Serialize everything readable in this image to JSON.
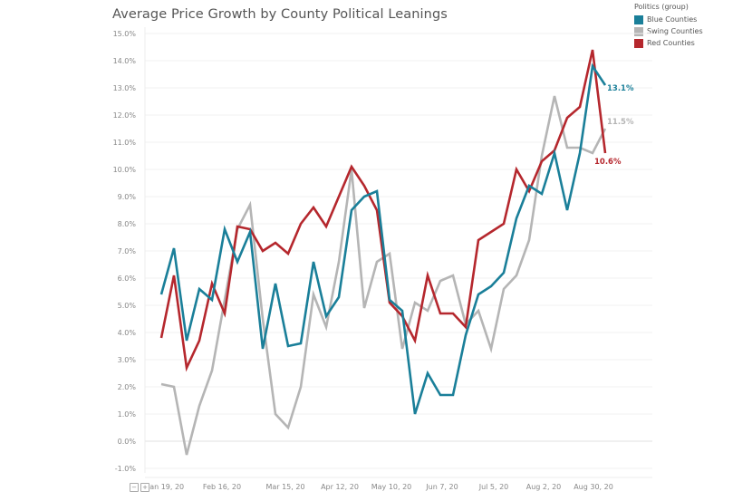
{
  "chart_data": {
    "type": "line",
    "title": "Average Price Growth by County Political Leanings",
    "xlabel": "",
    "ylabel": "",
    "ylim": [
      -1.0,
      15.0
    ],
    "y_ticks": [
      -1.0,
      0.0,
      1.0,
      2.0,
      3.0,
      4.0,
      5.0,
      6.0,
      7.0,
      8.0,
      9.0,
      10.0,
      11.0,
      12.0,
      13.0,
      14.0,
      15.0
    ],
    "y_tick_labels": [
      "-1.0%",
      "0.0%",
      "1.0%",
      "2.0%",
      "3.0%",
      "4.0%",
      "5.0%",
      "6.0%",
      "7.0%",
      "8.0%",
      "9.0%",
      "10.0%",
      "11.0%",
      "12.0%",
      "13.0%",
      "14.0%",
      "15.0%"
    ],
    "x_unit": "week index (weekly points)",
    "x_ticks": [
      {
        "week": 0.4,
        "label": "Jan 19, 20"
      },
      {
        "week": 4.8,
        "label": "Feb 16, 20"
      },
      {
        "week": 9.6,
        "label": "Mar 15, 20"
      },
      {
        "week": 14.0,
        "label": "Apr 12, 20"
      },
      {
        "week": 18.0,
        "label": "May 10, 20"
      },
      {
        "week": 22.0,
        "label": "Jun 7, 20"
      },
      {
        "week": 26.2,
        "label": "Jul 5, 20"
      },
      {
        "week": 30.0,
        "label": "Aug 2, 20"
      },
      {
        "week": 34.0,
        "label": "Aug 30, 20"
      }
    ],
    "grid": true,
    "legend": {
      "title": "Politics (group)",
      "placement": "top-right",
      "entries": [
        "Blue Counties",
        "Swing Counties",
        "Red Counties"
      ]
    },
    "series": [
      {
        "name": "Blue Counties",
        "color": "#1a7f99",
        "end_label": "13.1%",
        "values": [
          5.4,
          7.1,
          3.7,
          5.6,
          5.2,
          7.8,
          6.6,
          7.7,
          3.4,
          5.8,
          3.5,
          3.6,
          6.6,
          4.6,
          5.3,
          8.5,
          9.0,
          9.2,
          5.2,
          4.8,
          1.0,
          2.5,
          1.7,
          1.7,
          3.9,
          5.4,
          5.7,
          6.2,
          8.2,
          9.4,
          9.1,
          10.6,
          8.5,
          10.6,
          13.8,
          13.1
        ]
      },
      {
        "name": "Swing Counties",
        "color": "#b5b5b5",
        "end_label": "11.5%",
        "values": [
          2.1,
          2.0,
          -0.5,
          1.3,
          2.6,
          5.2,
          7.8,
          8.7,
          4.5,
          1.0,
          0.5,
          2.0,
          5.4,
          4.2,
          6.6,
          10.0,
          4.9,
          6.6,
          6.9,
          3.4,
          5.1,
          4.8,
          5.9,
          6.1,
          4.3,
          4.8,
          3.4,
          5.6,
          6.1,
          7.4,
          10.5,
          12.7,
          10.8,
          10.8,
          10.6,
          11.5
        ]
      },
      {
        "name": "Red Counties",
        "color": "#b5272d",
        "end_label": "10.6%",
        "values": [
          3.8,
          6.1,
          2.7,
          3.7,
          5.8,
          4.7,
          7.9,
          7.8,
          7.0,
          7.3,
          6.9,
          8.0,
          8.6,
          7.9,
          9.0,
          10.1,
          9.4,
          8.5,
          5.1,
          4.6,
          3.7,
          6.1,
          4.7,
          4.7,
          4.2,
          7.4,
          7.7,
          8.0,
          10.0,
          9.2,
          10.3,
          10.7,
          11.9,
          12.3,
          14.4,
          10.6
        ]
      }
    ]
  },
  "controls": {
    "zoom_out_glyph": "−",
    "zoom_in_glyph": "+"
  }
}
